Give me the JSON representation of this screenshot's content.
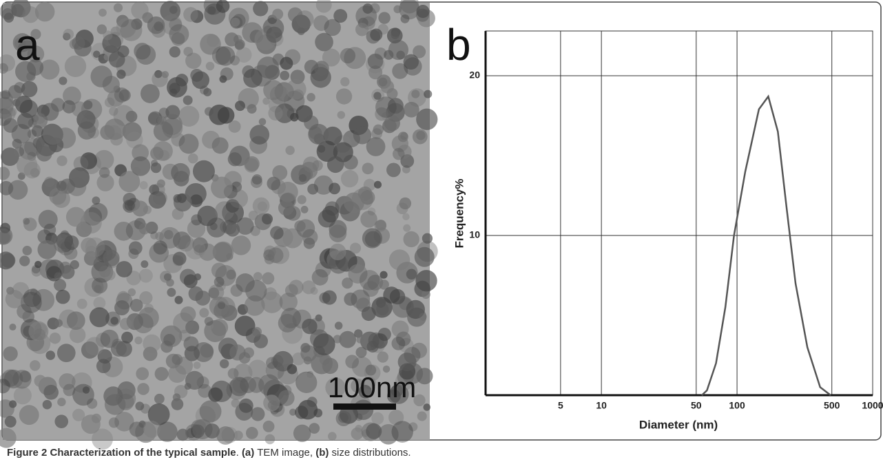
{
  "panel_a": {
    "label": "a",
    "scale_bar": "100nm"
  },
  "chart_data": {
    "type": "line",
    "panel_label": "b",
    "xlabel": "Diameter (nm)",
    "ylabel": "Frequency%",
    "xscale": "log",
    "xlim": [
      1.4,
      1000
    ],
    "ylim": [
      0,
      22.8
    ],
    "xticks": [
      5,
      10,
      50,
      100,
      500,
      1000
    ],
    "yticks": [
      10,
      20
    ],
    "grid": true,
    "series": [
      {
        "color": "#555555",
        "x": [
          55,
          60,
          70,
          82,
          95,
          115,
          145,
          170,
          200,
          230,
          270,
          330,
          410,
          490
        ],
        "values": [
          0,
          0.3,
          2,
          5.5,
          10,
          14,
          17.9,
          18.7,
          16.5,
          12,
          7,
          3,
          0.5,
          0
        ]
      }
    ]
  },
  "caption": {
    "title": "Figure 2 Characterization of the typical sample",
    "sep": ".",
    "a_ref": "(a)",
    "a_text": "TEM image,",
    "b_ref": "(b)",
    "b_text": "size distributions."
  }
}
